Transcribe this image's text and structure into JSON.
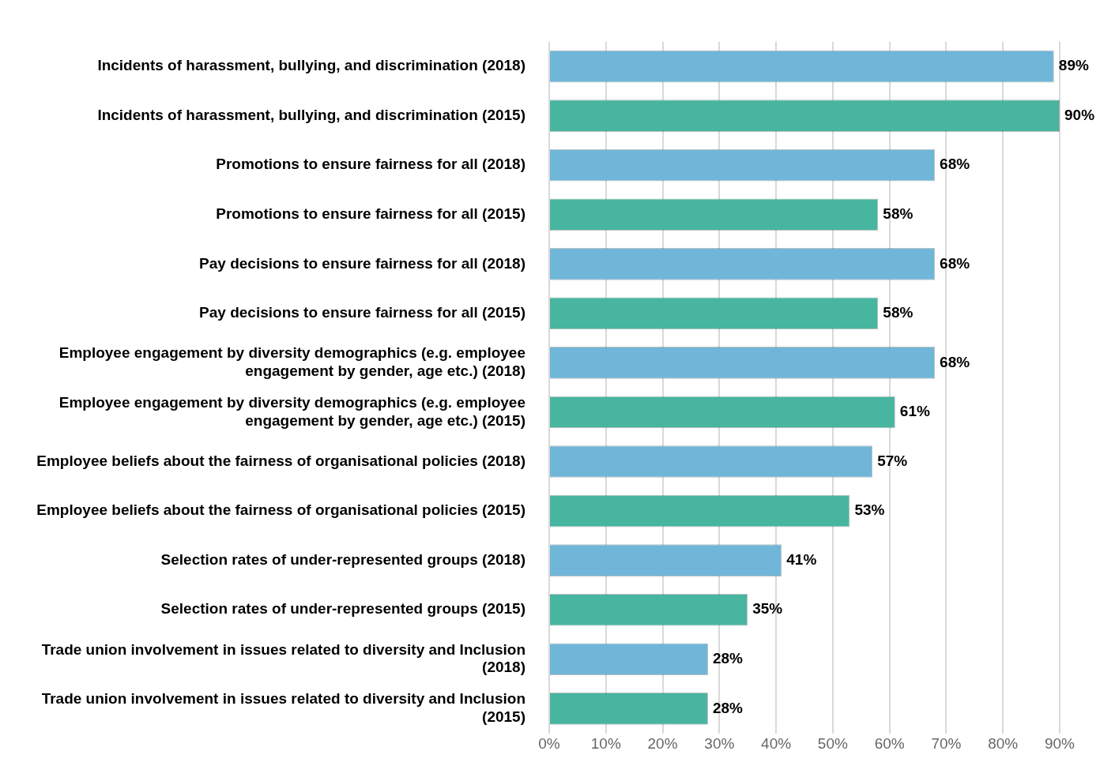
{
  "chart_data": {
    "type": "bar",
    "orientation": "horizontal",
    "categories": [
      "Incidents of harassment, bullying, and discrimination (2018)",
      "Incidents of harassment, bullying, and discrimination (2015)",
      "Promotions to ensure fairness for all (2018)",
      "Promotions to ensure fairness for all (2015)",
      "Pay decisions to ensure fairness for all (2018)",
      "Pay decisions to ensure fairness for all (2015)",
      "Employee engagement by diversity demographics (e.g. employee engagement by gender, age etc.) (2018)",
      "Employee engagement by diversity demographics (e.g. employee engagement by gender, age etc.) (2015)",
      "Employee beliefs about the fairness of organisational policies (2018)",
      "Employee beliefs about the fairness of organisational policies (2015)",
      "Selection rates of under-represented groups (2018)",
      "Selection rates of under-represented groups (2015)",
      "Trade union involvement in issues related to diversity and Inclusion (2018)",
      "Trade union involvement in issues related to diversity and Inclusion (2015)"
    ],
    "values": [
      89,
      90,
      68,
      58,
      68,
      58,
      68,
      61,
      57,
      53,
      41,
      35,
      28,
      28
    ],
    "colors": [
      "#70b6d8",
      "#47b5a0",
      "#70b6d8",
      "#47b5a0",
      "#70b6d8",
      "#47b5a0",
      "#70b6d8",
      "#47b5a0",
      "#70b6d8",
      "#47b5a0",
      "#70b6d8",
      "#47b5a0",
      "#70b6d8",
      "#47b5a0"
    ],
    "value_labels": [
      "89%",
      "90%",
      "68%",
      "58%",
      "68%",
      "58%",
      "68%",
      "61%",
      "57%",
      "53%",
      "41%",
      "35%",
      "28%",
      "28%"
    ],
    "xlim": [
      0,
      90
    ],
    "xticks": [
      {
        "value": 0,
        "label": "0%"
      },
      {
        "value": 10,
        "label": "10%"
      },
      {
        "value": 20,
        "label": "20%"
      },
      {
        "value": 30,
        "label": "30%"
      },
      {
        "value": 40,
        "label": "40%"
      },
      {
        "value": 50,
        "label": "50%"
      },
      {
        "value": 60,
        "label": "60%"
      },
      {
        "value": 70,
        "label": "70%"
      },
      {
        "value": 80,
        "label": "80%"
      },
      {
        "value": 90,
        "label": "90%"
      }
    ],
    "grid": "x",
    "legend": false
  }
}
